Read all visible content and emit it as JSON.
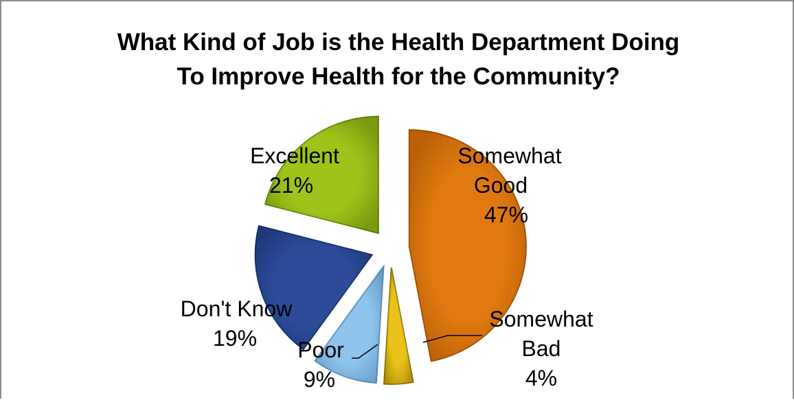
{
  "chart_data": {
    "type": "pie",
    "title_lines": [
      "What Kind of Job is the Health Department Doing",
      "To Improve Health for the Community?"
    ],
    "slices": [
      {
        "label_lines": [
          "Somewhat",
          "Good"
        ],
        "pct_label": "47%",
        "value": 47,
        "color": "#E07A10",
        "edge": "#9A4A00"
      },
      {
        "label_lines": [
          "Somewhat",
          "Bad"
        ],
        "pct_label": "4%",
        "value": 4,
        "color": "#E8C21A",
        "edge": "#8A6E00"
      },
      {
        "label_lines": [
          "Poor"
        ],
        "pct_label": "9%",
        "value": 9,
        "color": "#8EC3EC",
        "edge": "#4E86B4"
      },
      {
        "label_lines": [
          "Don't Know"
        ],
        "pct_label": "19%",
        "value": 19,
        "color": "#2C4C9A",
        "edge": "#142A62"
      },
      {
        "label_lines": [
          "Excellent"
        ],
        "pct_label": "21%",
        "value": 21,
        "color": "#9EC31A",
        "edge": "#5E7A06"
      }
    ],
    "legend": "none",
    "data_labels": "outside"
  }
}
